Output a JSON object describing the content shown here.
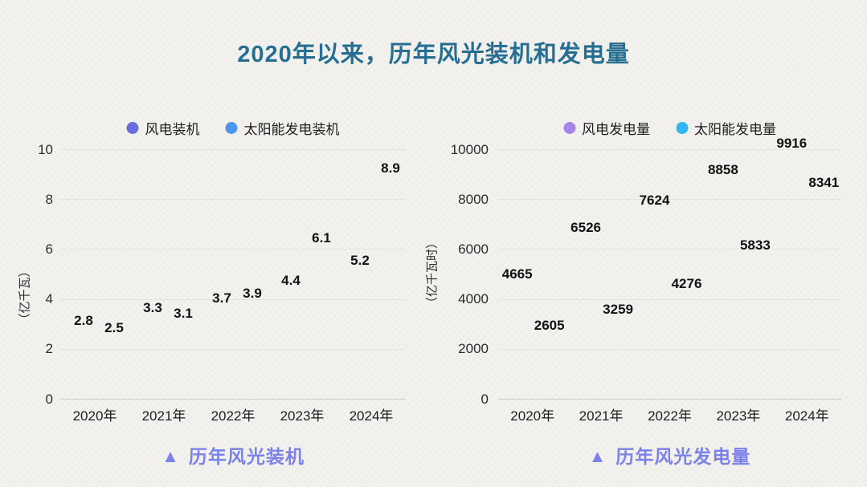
{
  "title": "2020年以来，历年风光装机和发电量",
  "colors": {
    "title_text": "#276f92",
    "caption_text": "#7b82e8",
    "data_label_text": "#111111",
    "gridline": "#e4e2df",
    "axis_zero_line": "#cccac7",
    "background": "#f5f3f0",
    "wind_installed_dot": "#6b6fdc",
    "solar_installed_dot": "#4d96ee",
    "wind_generation_dot": "#a784ec",
    "solar_generation_dot": "#35b5f2"
  },
  "chart_data": [
    {
      "type": "scatter",
      "title": "",
      "categories": [
        "2020年",
        "2021年",
        "2022年",
        "2023年",
        "2024年"
      ],
      "series": [
        {
          "name": "风电装机",
          "color": "#6b6fdc",
          "values": [
            2.8,
            3.3,
            3.7,
            4.4,
            5.2
          ]
        },
        {
          "name": "太阳能发电装机",
          "color": "#4d96ee",
          "values": [
            2.5,
            3.1,
            3.9,
            6.1,
            8.9
          ]
        }
      ],
      "xlabel": "",
      "ylabel": "（亿千瓦）",
      "yticks": [
        0,
        2,
        4,
        6,
        8,
        10
      ],
      "ylim": [
        0,
        10
      ],
      "grid": true,
      "legend_position": "top",
      "caption": {
        "icon": "▲",
        "text": "历年风光装机"
      }
    },
    {
      "type": "scatter",
      "title": "",
      "categories": [
        "2020年",
        "2021年",
        "2022年",
        "2023年",
        "2024年"
      ],
      "series": [
        {
          "name": "风电发电量",
          "color": "#a784ec",
          "values": [
            4665,
            6526,
            7624,
            8858,
            9916
          ]
        },
        {
          "name": "太阳能发电量",
          "color": "#35b5f2",
          "values": [
            2605,
            3259,
            4276,
            5833,
            8341
          ]
        }
      ],
      "xlabel": "",
      "ylabel": "（亿千瓦时）",
      "yticks": [
        0,
        2000,
        4000,
        6000,
        8000,
        10000
      ],
      "ylim": [
        0,
        10000
      ],
      "grid": true,
      "legend_position": "top",
      "caption": {
        "icon": "▲",
        "text": "历年风光发电量"
      }
    }
  ]
}
